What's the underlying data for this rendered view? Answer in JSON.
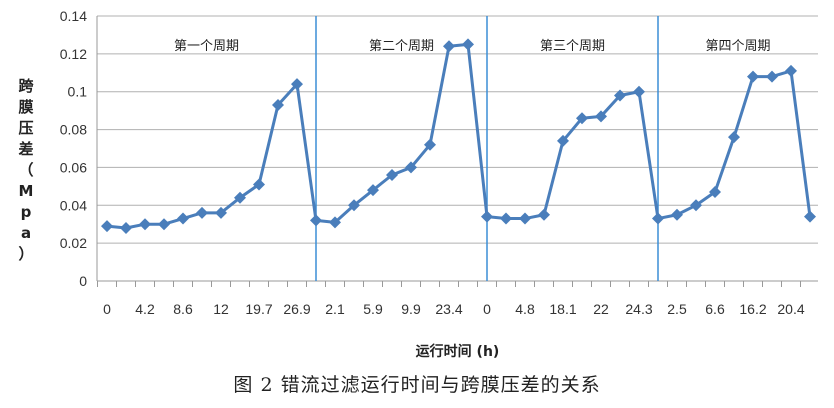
{
  "chart_data": {
    "type": "line",
    "ylabel": "跨膜压差（Mpa）",
    "xlabel": "运行时间 (h)",
    "caption": "图 2   错流过滤运行时间与跨膜压差的关系",
    "ylim": [
      0,
      0.14
    ],
    "yticks": [
      "0",
      "0.02",
      "0.04",
      "0.06",
      "0.08",
      "0.1",
      "0.12",
      "0.14"
    ],
    "grid": true,
    "categories": [
      "0",
      "",
      "4.2",
      "",
      "8.6",
      "",
      "12",
      "",
      "19.7",
      "",
      "26.9",
      "",
      "2.1",
      "",
      "5.9",
      "",
      "9.9",
      "",
      "23.4",
      "",
      "0",
      "",
      "4.8",
      "",
      "18.1",
      "",
      "22",
      "",
      "24.3",
      "",
      "2.5",
      "",
      "6.6",
      "",
      "16.2",
      "",
      "20.4",
      ""
    ],
    "values": [
      0.029,
      0.028,
      0.03,
      0.03,
      0.033,
      0.036,
      0.036,
      0.044,
      0.051,
      0.093,
      0.104,
      0.032,
      0.031,
      0.04,
      0.048,
      0.056,
      0.06,
      0.072,
      0.124,
      0.125,
      0.034,
      0.033,
      0.033,
      0.035,
      0.074,
      0.086,
      0.087,
      0.098,
      0.1,
      0.033,
      0.035,
      0.04,
      0.047,
      0.076,
      0.108,
      0.108,
      0.111,
      0.034
    ],
    "periods": [
      {
        "label": "第一个周期",
        "start": 0,
        "end": 11
      },
      {
        "label": "第二个周期",
        "start": 11,
        "end": 20
      },
      {
        "label": "第三个周期",
        "start": 20,
        "end": 29
      },
      {
        "label": "第四个周期",
        "start": 29,
        "end": 37
      }
    ],
    "colors": {
      "line": "#4a7ebb",
      "divider": "#3b8ed6",
      "grid": "#b0b0b0"
    }
  }
}
